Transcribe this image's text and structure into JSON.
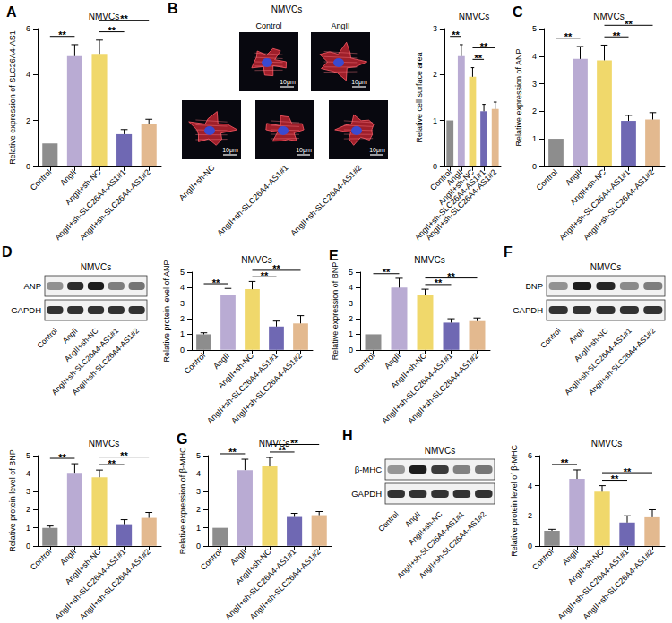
{
  "chart_data": [
    {
      "type": "bar",
      "panel": "A",
      "title": "NMVCs",
      "y_label": "Relative expression of SLC26A4-AS1",
      "categories": [
        "Control",
        "AngII",
        "AngII+sh-NC",
        "AngII+sh-SLC26A4-AS1#1",
        "AngII+sh-SLC26A4-AS1#2"
      ],
      "values": [
        1,
        4.8,
        4.9,
        1.4,
        1.85
      ],
      "errors": [
        0,
        0.5,
        0.6,
        0.2,
        0.2
      ],
      "colors": [
        "#8d8d8d",
        "#b9abd3",
        "#f0d86b",
        "#6f68b3",
        "#e3b98f"
      ],
      "ylim": [
        0,
        6
      ],
      "yticks": [
        0,
        2,
        4,
        6
      ],
      "grid": false,
      "significance": [
        {
          "from": 0,
          "to": 1,
          "label": "**"
        },
        {
          "from": 2,
          "to": 3,
          "label": "**"
        },
        {
          "from": 2,
          "to": 4,
          "label": "**"
        }
      ]
    },
    {
      "type": "bar",
      "title": "NMVCs",
      "y_label": "Relative cell surface area",
      "categories": [
        "Control",
        "AngII",
        "AngII+sh-NC",
        "AngII+sh-SLC26A4-AS1#1",
        "AngII+sh-SLC26A4-AS1#2"
      ],
      "values": [
        1,
        2.4,
        1.95,
        1.2,
        1.25
      ],
      "errors": [
        0,
        0.25,
        0.2,
        0.15,
        0.15
      ],
      "colors": [
        "#8d8d8d",
        "#b9abd3",
        "#f0d86b",
        "#6f68b3",
        "#e3b98f"
      ],
      "ylim": [
        0,
        3
      ],
      "yticks": [
        0,
        1,
        2,
        3
      ],
      "grid": false,
      "significance": [
        {
          "from": 0,
          "to": 1,
          "label": "**"
        },
        {
          "from": 2,
          "to": 3,
          "label": "**"
        },
        {
          "from": 2,
          "to": 4,
          "label": "**"
        }
      ]
    },
    {
      "type": "bar",
      "panel": "C",
      "title": "NMVCs",
      "y_label": "Relative expression of ANP",
      "categories": [
        "Control",
        "AngII",
        "AngII+sh-NC",
        "AngII+sh-SLC26A4-AS1#1",
        "AngII+sh-SLC26A4-AS1#2"
      ],
      "values": [
        1,
        3.9,
        3.85,
        1.65,
        1.7
      ],
      "errors": [
        0,
        0.45,
        0.55,
        0.2,
        0.25
      ],
      "colors": [
        "#8d8d8d",
        "#b9abd3",
        "#f0d86b",
        "#6f68b3",
        "#e3b98f"
      ],
      "ylim": [
        0,
        5
      ],
      "yticks": [
        0,
        1,
        2,
        3,
        4,
        5
      ],
      "grid": false,
      "significance": [
        {
          "from": 0,
          "to": 1,
          "label": "**"
        },
        {
          "from": 2,
          "to": 3,
          "label": "**"
        },
        {
          "from": 2,
          "to": 4,
          "label": "**"
        }
      ]
    },
    {
      "type": "bar",
      "title": "NMVCs",
      "y_label": "Relative protein level of ANP",
      "categories": [
        "Control",
        "AngII",
        "AngII+sh-NC",
        "AngII+sh-SLC26A4-AS1#1",
        "AngII+sh-SLC26A4-AS1#2"
      ],
      "values": [
        1,
        3.5,
        3.9,
        1.5,
        1.7
      ],
      "errors": [
        0.1,
        0.45,
        0.5,
        0.35,
        0.5
      ],
      "colors": [
        "#8d8d8d",
        "#b9abd3",
        "#f0d86b",
        "#6f68b3",
        "#e3b98f"
      ],
      "ylim": [
        0,
        5
      ],
      "yticks": [
        0,
        1,
        2,
        3,
        4,
        5
      ],
      "grid": false,
      "significance": [
        {
          "from": 0,
          "to": 1,
          "label": "**"
        },
        {
          "from": 2,
          "to": 3,
          "label": "**"
        },
        {
          "from": 2,
          "to": 4,
          "label": "**"
        }
      ]
    },
    {
      "type": "bar",
      "panel": "E",
      "title": "NMVCs",
      "y_label": "Relative expression of BNP",
      "categories": [
        "Control",
        "AngII",
        "AngII+sh-NC",
        "AngII+sh-SLC26A4-AS1#1",
        "AngII+sh-SLC26A4-AS1#2"
      ],
      "values": [
        1,
        4.0,
        3.5,
        1.75,
        1.85
      ],
      "errors": [
        0,
        0.6,
        0.4,
        0.25,
        0.2
      ],
      "colors": [
        "#8d8d8d",
        "#b9abd3",
        "#f0d86b",
        "#6f68b3",
        "#e3b98f"
      ],
      "ylim": [
        0,
        5
      ],
      "yticks": [
        0,
        1,
        2,
        3,
        4,
        5
      ],
      "grid": false,
      "significance": [
        {
          "from": 0,
          "to": 1,
          "label": "**"
        },
        {
          "from": 2,
          "to": 3,
          "label": "**"
        },
        {
          "from": 2,
          "to": 4,
          "label": "**"
        }
      ]
    },
    {
      "type": "bar",
      "title": "NMVCs",
      "y_label": "Relative protein level of BNP",
      "categories": [
        "Control",
        "AngII",
        "AngII+sh-NC",
        "AngII+sh-SLC26A4-AS1#1",
        "AngII+sh-SLC26A4-AS1#2"
      ],
      "values": [
        1,
        4.05,
        3.8,
        1.2,
        1.55
      ],
      "errors": [
        0.1,
        0.5,
        0.4,
        0.25,
        0.3
      ],
      "colors": [
        "#8d8d8d",
        "#b9abd3",
        "#f0d86b",
        "#6f68b3",
        "#e3b98f"
      ],
      "ylim": [
        0,
        5
      ],
      "yticks": [
        0,
        1,
        2,
        3,
        4,
        5
      ],
      "grid": false,
      "significance": [
        {
          "from": 0,
          "to": 1,
          "label": "**"
        },
        {
          "from": 2,
          "to": 3,
          "label": "**"
        },
        {
          "from": 2,
          "to": 4,
          "label": "**"
        }
      ]
    },
    {
      "type": "bar",
      "panel": "G",
      "title": "NMVCs",
      "y_label": "Relative expression of β-MHC",
      "categories": [
        "Control",
        "AngII",
        "AngII+sh-NC",
        "AngII+sh-SLC26A4-AS1#1",
        "AngII+sh-SLC26A4-AS1#2"
      ],
      "values": [
        1,
        4.2,
        4.4,
        1.6,
        1.7
      ],
      "errors": [
        0,
        0.6,
        0.5,
        0.2,
        0.2
      ],
      "colors": [
        "#8d8d8d",
        "#b9abd3",
        "#f0d86b",
        "#6f68b3",
        "#e3b98f"
      ],
      "ylim": [
        0,
        5
      ],
      "yticks": [
        0,
        1,
        2,
        3,
        4,
        5
      ],
      "grid": false,
      "significance": [
        {
          "from": 0,
          "to": 1,
          "label": "**"
        },
        {
          "from": 2,
          "to": 3,
          "label": "**"
        },
        {
          "from": 2,
          "to": 4,
          "label": "**"
        }
      ]
    },
    {
      "type": "bar",
      "title": "NMVCs",
      "y_label": "Relative protein level of β-MHC",
      "categories": [
        "Control",
        "AngII",
        "AngII+sh-NC",
        "AngII+sh-SLC26A4-AS1#1",
        "AngII+sh-SLC26A4-AS1#2"
      ],
      "values": [
        1,
        4.45,
        3.6,
        1.55,
        1.9
      ],
      "errors": [
        0.1,
        0.6,
        0.4,
        0.45,
        0.5
      ],
      "colors": [
        "#8d8d8d",
        "#b9abd3",
        "#f0d86b",
        "#6f68b3",
        "#e3b98f"
      ],
      "ylim": [
        0,
        6
      ],
      "yticks": [
        0,
        2,
        4,
        6
      ],
      "grid": false,
      "significance": [
        {
          "from": 0,
          "to": 1,
          "label": "**"
        },
        {
          "from": 2,
          "to": 3,
          "label": "**"
        },
        {
          "from": 2,
          "to": 4,
          "label": "**"
        }
      ]
    }
  ],
  "images": {
    "panel": "B",
    "title": "NMVCs",
    "labels": [
      "Control",
      "AngII",
      "AngII+sh-NC",
      "AngII+sh-SLC26A4-AS1#1",
      "AngII+sh-SLC26A4-AS1#2"
    ],
    "scale_bar": "10μm"
  },
  "blots": [
    {
      "panel": "D",
      "title": "NMVCs",
      "bands": [
        "ANP",
        "GAPDH"
      ],
      "lanes": [
        "Control",
        "AngII",
        "AngII+sh-NC",
        "AngII+sh-SLC26A4-AS1#1",
        "AngII+sh-SLC26A4-AS1#2"
      ]
    },
    {
      "panel": "F",
      "title": "NMVCs",
      "bands": [
        "BNP",
        "GAPDH"
      ],
      "lanes": [
        "Control",
        "AngII",
        "AngII+sh-NC",
        "AngII+sh-SLC26A4-AS1#1",
        "AngII+sh-SLC26A4-AS1#2"
      ]
    },
    {
      "panel": "H",
      "title": "NMVCs",
      "bands": [
        "β-MHC",
        "GAPDH"
      ],
      "lanes": [
        "Control",
        "AngII",
        "AngII+sh-NC",
        "AngII+sh-SLC26A4-AS1#1",
        "AngII+sh-SLC26A4-AS1#2"
      ]
    }
  ]
}
